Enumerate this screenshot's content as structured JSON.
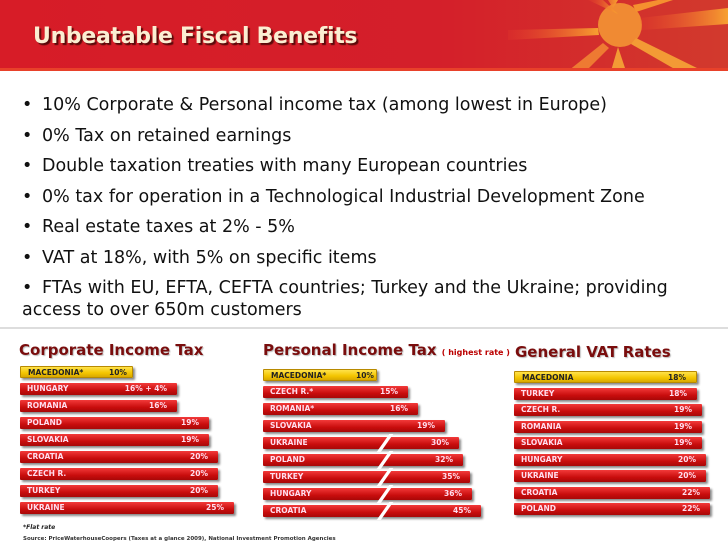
{
  "header": {
    "title": "Unbeatable Fiscal Benefits"
  },
  "bullets": [
    "10% Corporate & Personal income tax (among lowest in Europe)",
    "0% Tax on retained earnings",
    "Double taxation treaties with many European countries",
    "0% tax for operation in a Technological Industrial Development Zone",
    "Real estate taxes at 2% - 5%",
    "VAT at 18%, with 5% on specific items",
    "FTAs with EU, EFTA, CEFTA countries; Turkey and the Ukraine; providing access to over 650m customers"
  ],
  "chart_data": [
    {
      "type": "bar",
      "title": "Corporate Income Tax",
      "subtitle": "",
      "categories": [
        "MACEDONIA*",
        "HUNGARY",
        "ROMANIA",
        "POLAND",
        "SLOVAKIA",
        "CROATIA",
        "CZECH R.",
        "TURKEY",
        "UKRAINE"
      ],
      "values": [
        10,
        16,
        16,
        19,
        19,
        20,
        20,
        20,
        25
      ],
      "labels": [
        "10%",
        "16% + 4%",
        "16%",
        "19%",
        "19%",
        "20%",
        "20%",
        "20%",
        "25%"
      ],
      "highlight": "#f3c500",
      "color": "#d01010"
    },
    {
      "type": "bar",
      "title": "Personal Income Tax",
      "subtitle": "( highest rate )",
      "categories": [
        "MACEDONIA*",
        "CZECH R.*",
        "ROMANIA*",
        "SLOVAKIA",
        "UKRAINE",
        "POLAND",
        "TURKEY",
        "HUNGARY",
        "CROATIA"
      ],
      "values": [
        10,
        15,
        16,
        19,
        30,
        32,
        35,
        36,
        45
      ],
      "labels": [
        "10%",
        "15%",
        "16%",
        "19%",
        "30%",
        "32%",
        "35%",
        "36%",
        "45%"
      ],
      "axis_break": true,
      "highlight": "#f3c500",
      "color": "#d01010"
    },
    {
      "type": "bar",
      "title": "General VAT Rates",
      "subtitle": "",
      "categories": [
        "MACEDONIA",
        "TURKEY",
        "CZECH R.",
        "ROMANIA",
        "SLOVAKIA",
        "HUNGARY",
        "UKRAINE",
        "CROATIA",
        "POLAND"
      ],
      "values": [
        18,
        18,
        19,
        19,
        19,
        20,
        20,
        22,
        22
      ],
      "labels": [
        "18%",
        "18%",
        "19%",
        "19%",
        "19%",
        "20%",
        "20%",
        "22%",
        "22%"
      ],
      "highlight": "#f3c500",
      "color": "#d01010"
    }
  ],
  "footnote": "*Flat rate",
  "source": "Source: PriceWaterhouseCoopers (Taxes at a glance 2009), National Investment Promotion Agencies"
}
